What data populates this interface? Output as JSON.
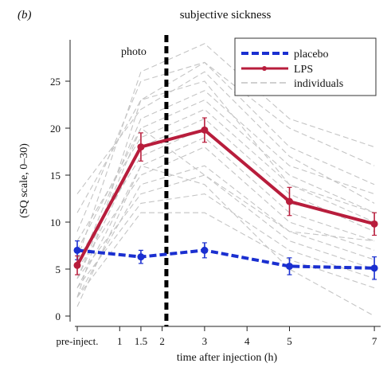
{
  "panel_label": "(b)",
  "chart_data": {
    "type": "line",
    "title": "subjective sickness",
    "xlabel": "time after injection (h)",
    "ylabel": "(SQ scale, 0–30)",
    "xlim": [
      -0.3,
      7.3
    ],
    "ylim": [
      -1,
      30
    ],
    "x_ticks": [
      {
        "value": 0,
        "label": "pre-inject."
      },
      {
        "value": 1,
        "label": "1"
      },
      {
        "value": 1.5,
        "label": "1.5"
      },
      {
        "value": 2,
        "label": "2"
      },
      {
        "value": 3,
        "label": "3"
      },
      {
        "value": 4,
        "label": "4"
      },
      {
        "value": 5,
        "label": "5"
      },
      {
        "value": 7,
        "label": "7"
      }
    ],
    "y_ticks": [
      0,
      5,
      10,
      15,
      20,
      25
    ],
    "photo_marker": {
      "x": 2.1,
      "label": "photo"
    },
    "legend": {
      "placement": "top-right"
    },
    "series": [
      {
        "name": "placebo",
        "color": "#1a2fd0",
        "style": "dashed",
        "points": [
          {
            "x": 0,
            "y": 7.0,
            "err": 1.0
          },
          {
            "x": 1.5,
            "y": 6.3,
            "err": 0.7
          },
          {
            "x": 3,
            "y": 7.0,
            "err": 0.8
          },
          {
            "x": 5,
            "y": 5.3,
            "err": 0.9
          },
          {
            "x": 7,
            "y": 5.1,
            "err": 1.2
          }
        ]
      },
      {
        "name": "LPS",
        "color": "#b81d3c",
        "style": "solid",
        "points": [
          {
            "x": 0,
            "y": 5.4,
            "err": 1.0
          },
          {
            "x": 1.5,
            "y": 18.0,
            "err": 1.5
          },
          {
            "x": 3,
            "y": 19.8,
            "err": 1.3
          },
          {
            "x": 5,
            "y": 12.2,
            "err": 1.5
          },
          {
            "x": 7,
            "y": 9.8,
            "err": 1.2
          }
        ]
      },
      {
        "name": "individuals",
        "color": "#c4c4c4",
        "style": "dashed",
        "x": [
          0,
          1.5,
          3,
          5,
          7
        ],
        "lines": [
          [
            6,
            26,
            29,
            21,
            18
          ],
          [
            9,
            25,
            27,
            20,
            16
          ],
          [
            11,
            23,
            27,
            18,
            14
          ],
          [
            13,
            22,
            26,
            17,
            12
          ],
          [
            5,
            21,
            24,
            16,
            13
          ],
          [
            7,
            20,
            23,
            15,
            11
          ],
          [
            8,
            19,
            22,
            14,
            10
          ],
          [
            4,
            18,
            21,
            13,
            9
          ],
          [
            6,
            17,
            20,
            12,
            10
          ],
          [
            3,
            16,
            19,
            11,
            8
          ],
          [
            5,
            15,
            18,
            10,
            7
          ],
          [
            2,
            14,
            16,
            9,
            6
          ],
          [
            4,
            13,
            15,
            8,
            5
          ],
          [
            3,
            12,
            13,
            7,
            4
          ],
          [
            2,
            11,
            11,
            6,
            3
          ],
          [
            1,
            16,
            14,
            5,
            0
          ],
          [
            2,
            23,
            25,
            14,
            11
          ],
          [
            4,
            20,
            15,
            9,
            8
          ]
        ]
      }
    ]
  }
}
